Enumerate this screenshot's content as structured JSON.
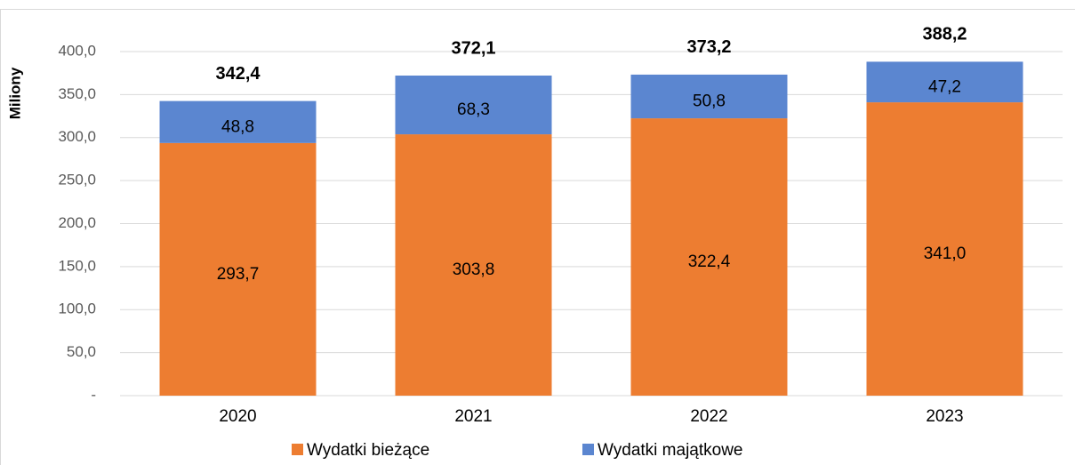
{
  "chart_data": {
    "type": "stacked_bar",
    "y_axis_label": "Miliony",
    "categories": [
      "2020",
      "2021",
      "2022",
      "2023"
    ],
    "series": [
      {
        "name": "Wydatki bieżące",
        "color": "#ed7d31",
        "values": [
          293.7,
          303.8,
          322.4,
          341.0
        ],
        "value_labels": [
          "293,7",
          "303,8",
          "322,4",
          "341,0"
        ]
      },
      {
        "name": "Wydatki majątkowe",
        "color": "#5b86d0",
        "values": [
          48.8,
          68.3,
          50.8,
          47.2
        ],
        "value_labels": [
          "48,8",
          "68,3",
          "50,8",
          "47,2"
        ]
      }
    ],
    "totals": {
      "values": [
        342.4,
        372.1,
        373.2,
        388.2
      ],
      "value_labels": [
        "342,4",
        "372,1",
        "373,2",
        "388,2"
      ]
    },
    "ylim": [
      0,
      400
    ],
    "yticks": [
      {
        "value": 0,
        "label": "-"
      },
      {
        "value": 50,
        "label": "50,0"
      },
      {
        "value": 100,
        "label": "100,0"
      },
      {
        "value": 150,
        "label": "150,0"
      },
      {
        "value": 200,
        "label": "200,0"
      },
      {
        "value": 250,
        "label": "250,0"
      },
      {
        "value": 300,
        "label": "300,0"
      },
      {
        "value": 350,
        "label": "350,0"
      },
      {
        "value": 400,
        "label": "400,0"
      }
    ],
    "grid": true,
    "legend": "bottom"
  }
}
